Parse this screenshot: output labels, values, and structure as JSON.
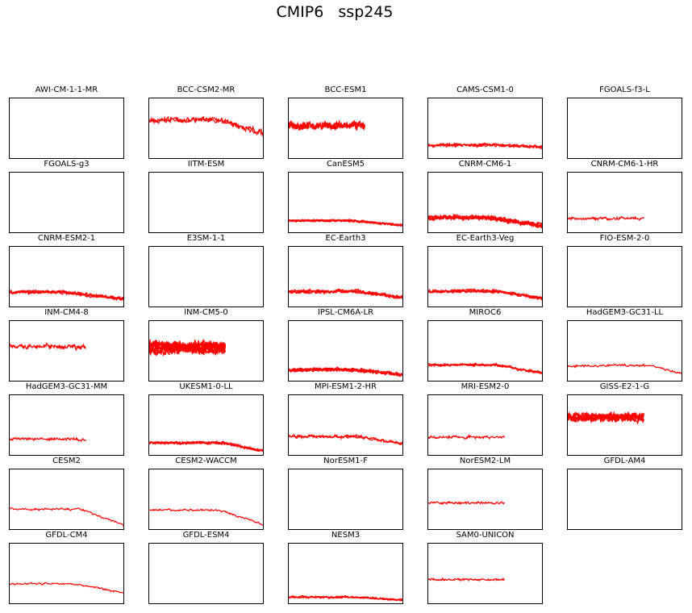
{
  "suptitle": "CMIP6   ssp245",
  "colors": {
    "line": "#ff0000",
    "frame": "#000000",
    "background": "#ffffff"
  },
  "chart_data": {
    "type": "line",
    "grid": false,
    "axes_ticks": false,
    "panels": [
      {
        "name": "AWI-CM-1-1-MR",
        "has_data": false
      },
      {
        "name": "BCC-CSM2-MR",
        "has_data": true,
        "start": 0.0,
        "end": 1.0,
        "level": 0.66,
        "drop": 0.22,
        "drop_from": 0.62,
        "noise": 0.05,
        "members": 2
      },
      {
        "name": "BCC-ESM1",
        "has_data": true,
        "start": 0.0,
        "end": 0.66,
        "level": 0.57,
        "drop": 0.0,
        "drop_from": 1.0,
        "noise": 0.07,
        "members": 3
      },
      {
        "name": "CAMS-CSM1-0",
        "has_data": true,
        "start": 0.0,
        "end": 1.0,
        "level": 0.24,
        "drop": 0.03,
        "drop_from": 0.6,
        "noise": 0.03,
        "members": 3
      },
      {
        "name": "FGOALS-f3-L",
        "has_data": false
      },
      {
        "name": "FGOALS-g3",
        "has_data": false
      },
      {
        "name": "IITM-ESM",
        "has_data": false
      },
      {
        "name": "CanESM5",
        "has_data": true,
        "start": 0.0,
        "end": 1.0,
        "level": 0.22,
        "drop": 0.08,
        "drop_from": 0.55,
        "noise": 0.02,
        "members": 5
      },
      {
        "name": "CNRM-CM6-1",
        "has_data": true,
        "start": 0.0,
        "end": 1.0,
        "level": 0.27,
        "drop": 0.14,
        "drop_from": 0.5,
        "noise": 0.04,
        "members": 6
      },
      {
        "name": "CNRM-CM6-1-HR",
        "has_data": true,
        "start": 0.0,
        "end": 0.66,
        "level": 0.26,
        "drop": 0.0,
        "drop_from": 1.0,
        "noise": 0.025,
        "members": 1
      },
      {
        "name": "CNRM-ESM2-1",
        "has_data": true,
        "start": 0.0,
        "end": 1.0,
        "level": 0.27,
        "drop": 0.12,
        "drop_from": 0.45,
        "noise": 0.03,
        "members": 4
      },
      {
        "name": "E3SM-1-1",
        "has_data": false
      },
      {
        "name": "EC-Earth3",
        "has_data": true,
        "start": 0.0,
        "end": 1.0,
        "level": 0.27,
        "drop": 0.1,
        "drop_from": 0.6,
        "noise": 0.03,
        "members": 4
      },
      {
        "name": "EC-Earth3-Veg",
        "has_data": true,
        "start": 0.0,
        "end": 1.0,
        "level": 0.27,
        "drop": 0.12,
        "drop_from": 0.6,
        "noise": 0.03,
        "members": 4
      },
      {
        "name": "FIO-ESM-2-0",
        "has_data": false
      },
      {
        "name": "INM-CM4-8",
        "has_data": true,
        "start": 0.0,
        "end": 0.66,
        "level": 0.58,
        "drop": 0.0,
        "drop_from": 1.0,
        "noise": 0.05,
        "members": 1
      },
      {
        "name": "INM-CM5-0",
        "has_data": true,
        "start": 0.0,
        "end": 0.66,
        "level": 0.57,
        "drop": 0.0,
        "drop_from": 1.0,
        "noise": 0.09,
        "members": 8
      },
      {
        "name": "IPSL-CM6A-LR",
        "has_data": true,
        "start": 0.0,
        "end": 1.0,
        "level": 0.2,
        "drop": 0.08,
        "drop_from": 0.55,
        "noise": 0.03,
        "members": 6
      },
      {
        "name": "MIROC6",
        "has_data": true,
        "start": 0.0,
        "end": 1.0,
        "level": 0.28,
        "drop": 0.14,
        "drop_from": 0.6,
        "noise": 0.025,
        "members": 3
      },
      {
        "name": "HadGEM3-GC31-LL",
        "has_data": true,
        "start": 0.0,
        "end": 1.0,
        "level": 0.28,
        "drop": 0.14,
        "drop_from": 0.72,
        "noise": 0.025,
        "members": 1
      },
      {
        "name": "HadGEM3-GC31-MM",
        "has_data": true,
        "start": 0.0,
        "end": 0.66,
        "level": 0.29,
        "drop": 0.04,
        "drop_from": 0.55,
        "noise": 0.025,
        "members": 1
      },
      {
        "name": "UKESM1-0-LL",
        "has_data": true,
        "start": 0.0,
        "end": 1.0,
        "level": 0.23,
        "drop": 0.14,
        "drop_from": 0.65,
        "noise": 0.025,
        "members": 4
      },
      {
        "name": "MPI-ESM1-2-HR",
        "has_data": true,
        "start": 0.0,
        "end": 1.0,
        "level": 0.32,
        "drop": 0.12,
        "drop_from": 0.6,
        "noise": 0.03,
        "members": 2
      },
      {
        "name": "MRI-ESM2-0",
        "has_data": true,
        "start": 0.0,
        "end": 0.66,
        "level": 0.32,
        "drop": 0.0,
        "drop_from": 1.0,
        "noise": 0.025,
        "members": 1
      },
      {
        "name": "GISS-E2-1-G",
        "has_data": true,
        "start": 0.0,
        "end": 0.66,
        "level": 0.64,
        "drop": 0.0,
        "drop_from": 1.0,
        "noise": 0.06,
        "members": 6
      },
      {
        "name": "CESM2",
        "has_data": true,
        "start": 0.0,
        "end": 1.0,
        "level": 0.35,
        "drop": 0.26,
        "drop_from": 0.6,
        "noise": 0.02,
        "members": 1
      },
      {
        "name": "CESM2-WACCM",
        "has_data": true,
        "start": 0.0,
        "end": 1.0,
        "level": 0.34,
        "drop": 0.24,
        "drop_from": 0.6,
        "noise": 0.02,
        "members": 1
      },
      {
        "name": "NorESM1-F",
        "has_data": false
      },
      {
        "name": "NorESM2-LM",
        "has_data": true,
        "start": 0.0,
        "end": 0.66,
        "level": 0.45,
        "drop": 0.0,
        "drop_from": 1.0,
        "noise": 0.02,
        "members": 1
      },
      {
        "name": "GFDL-AM4",
        "has_data": false
      },
      {
        "name": "GFDL-CM4",
        "has_data": true,
        "start": 0.0,
        "end": 1.0,
        "level": 0.35,
        "drop": 0.15,
        "drop_from": 0.55,
        "noise": 0.02,
        "members": 1
      },
      {
        "name": "GFDL-ESM4",
        "has_data": false
      },
      {
        "name": "NESM3",
        "has_data": true,
        "start": 0.0,
        "end": 1.0,
        "level": 0.13,
        "drop": 0.05,
        "drop_from": 0.55,
        "noise": 0.02,
        "members": 3
      },
      {
        "name": "SAM0-UNICON",
        "has_data": true,
        "start": 0.0,
        "end": 0.66,
        "level": 0.41,
        "drop": 0.0,
        "drop_from": 1.0,
        "noise": 0.02,
        "members": 1
      }
    ]
  }
}
